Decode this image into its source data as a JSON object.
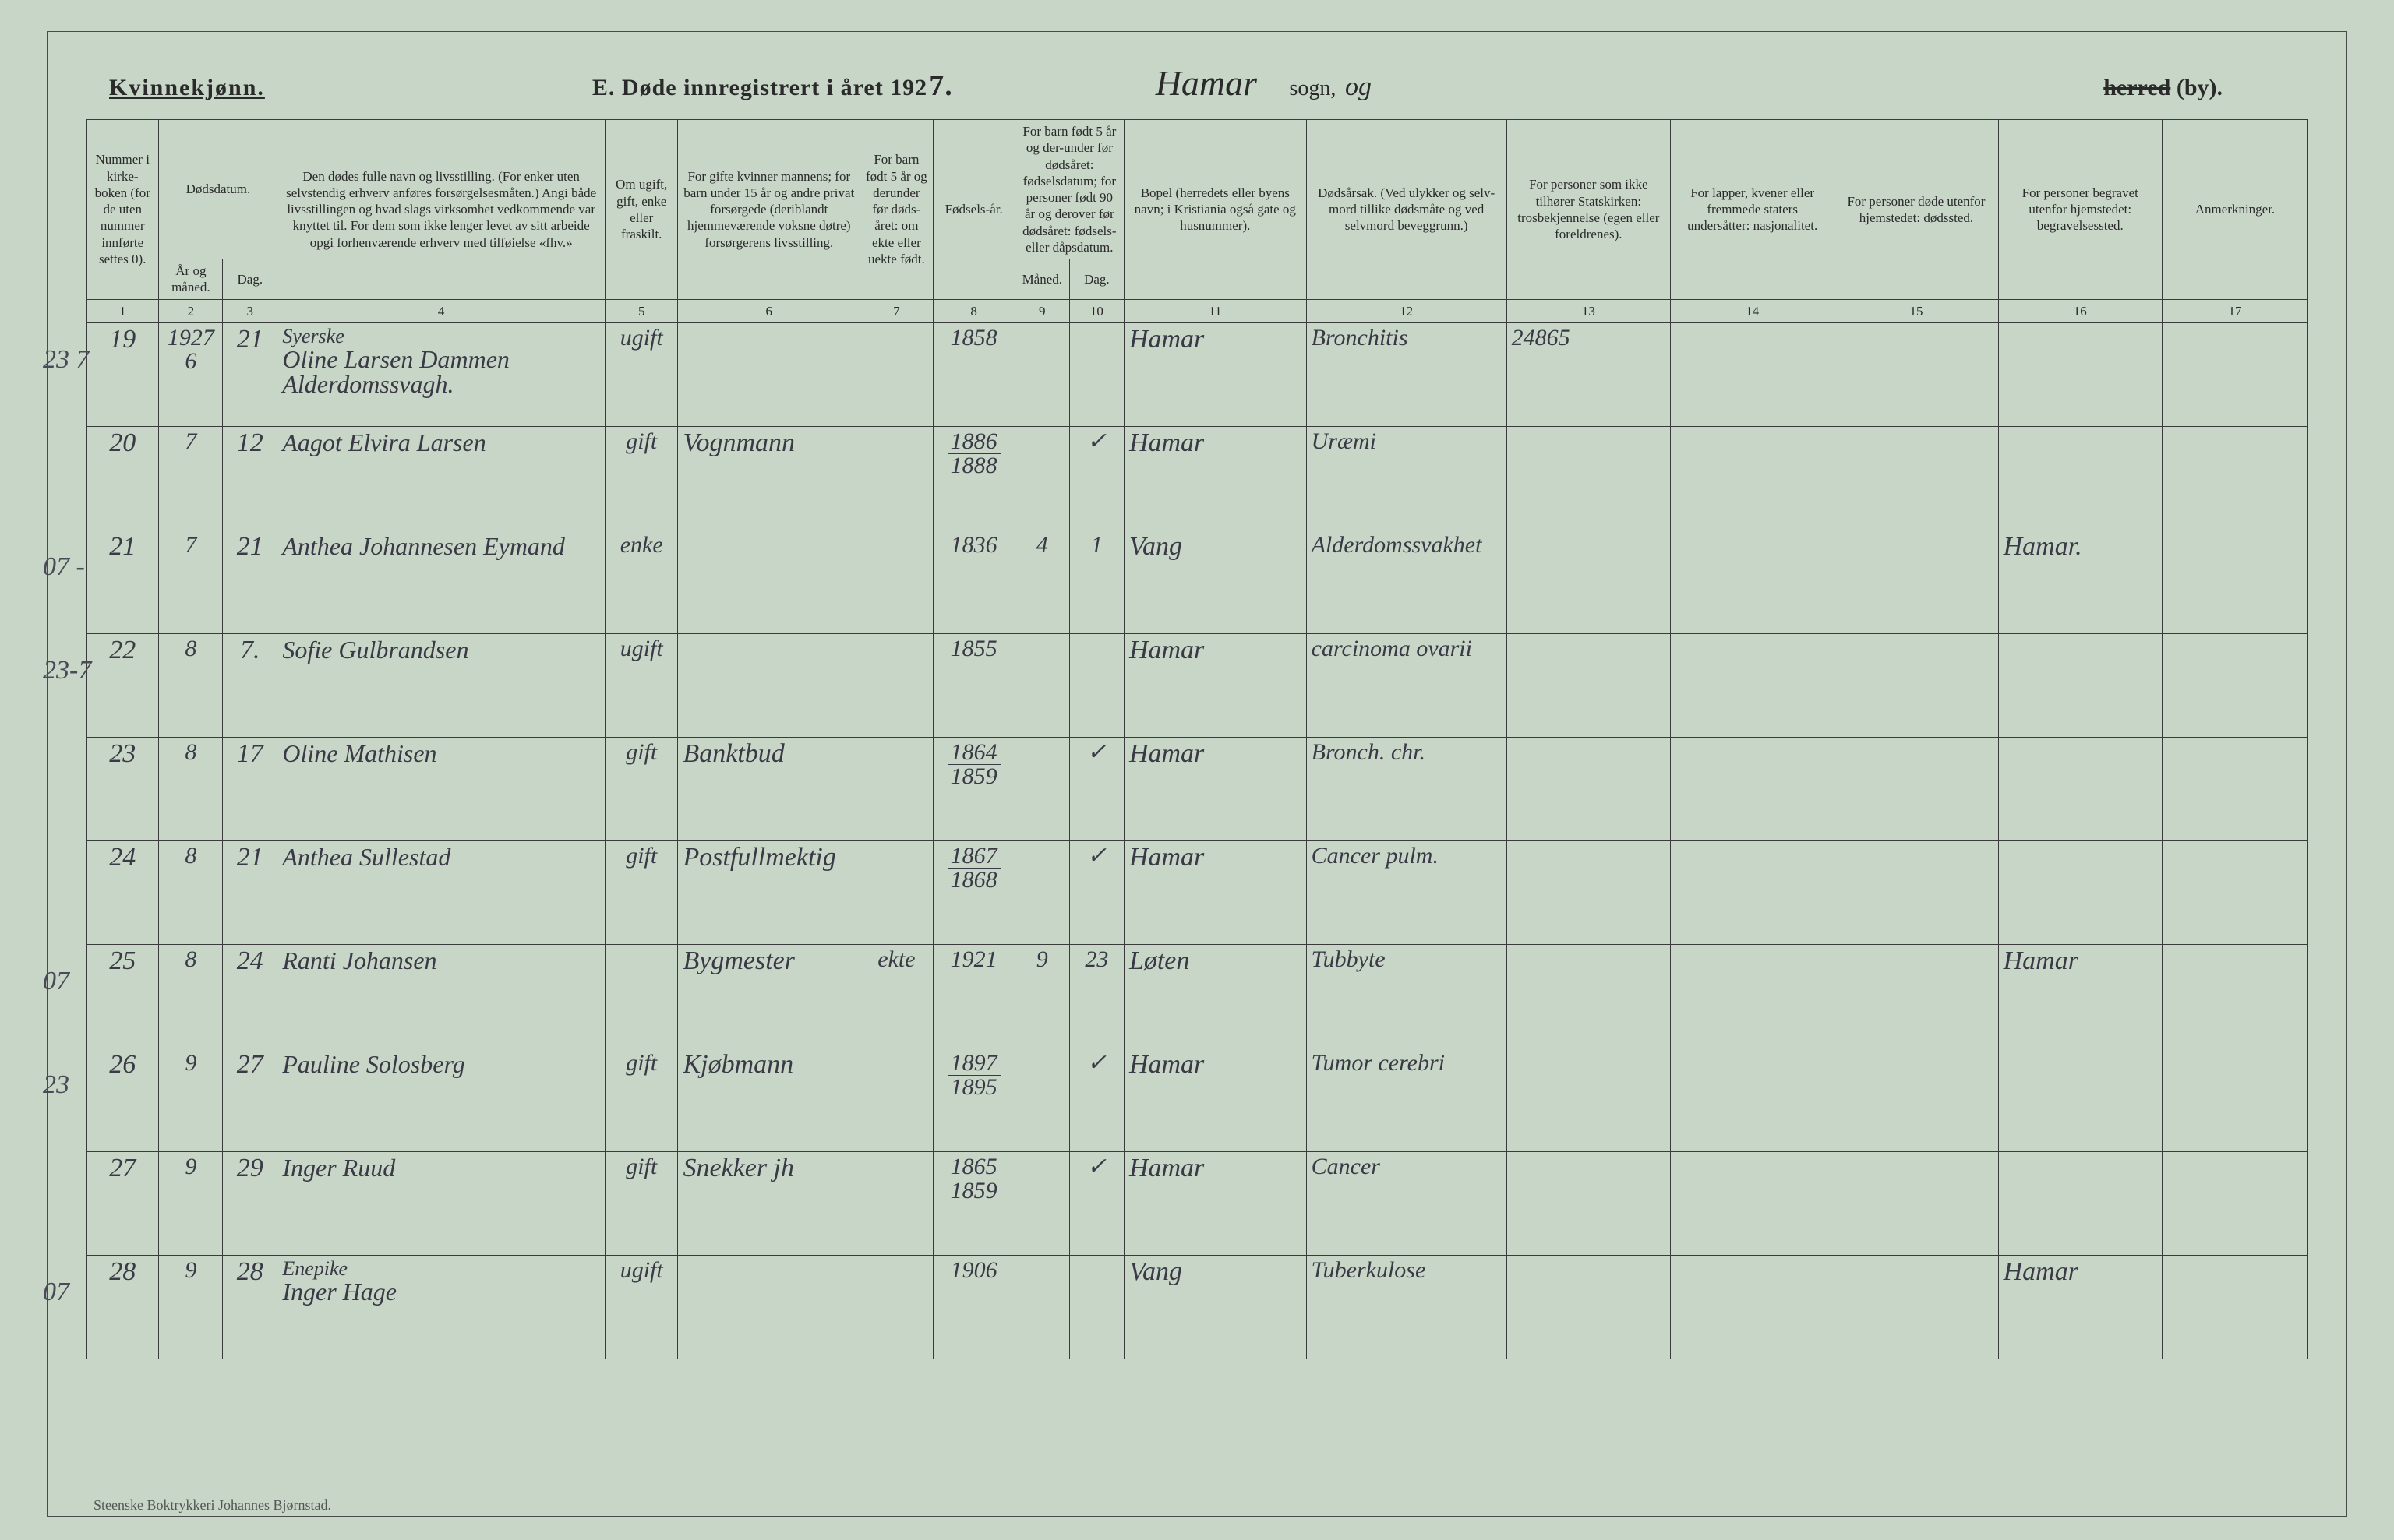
{
  "header": {
    "gender": "Kvinnekjønn.",
    "title_prefix": "E.  Døde innregistrert i året 192",
    "year_suffix": "7.",
    "sogn_name": "Hamar",
    "sogn_label": "sogn,",
    "og_hand": "og",
    "herred_strike": "herred",
    "herred_by": "(by)."
  },
  "columns": {
    "c1": "Nummer i kirke-boken (for de uten nummer innførte settes 0).",
    "c2_3_top": "Dødsdatum.",
    "c2": "År og måned.",
    "c3": "Dag.",
    "c4": "Den dødes fulle navn og livsstilling. (For enker uten selvstendig erhverv anføres forsørgelsesmåten.) Angi både livsstillingen og hvad slags virksomhet vedkommende var knyttet til. For dem som ikke lenger levet av sitt arbeide opgi forhenværende erhverv med tilføielse «fhv.»",
    "c5": "Om ugift, gift, enke eller fraskilt.",
    "c6": "For gifte kvinner mannens; for barn under 15 år og andre privat forsørgede (deriblandt hjemmeværende voksne døtre) forsørgerens livsstilling.",
    "c7": "For barn født 5 år og derunder før døds-året: om ekte eller uekte født.",
    "c8": "Fødsels-år.",
    "c9_10_top": "For barn født 5 år og der-under før dødsåret: fødselsdatum; for personer født 90 år og derover før dødsåret: fødsels- eller dåpsdatum.",
    "c9": "Måned.",
    "c10": "Dag.",
    "c11": "Bopel (herredets eller byens navn; i Kristiania også gate og husnummer).",
    "c12": "Dødsårsak. (Ved ulykker og selv-mord tillike dødsmåte og ved selvmord beveggrunn.)",
    "c13": "For personer som ikke tilhører Statskirken: trosbekjennelse (egen eller foreldrenes).",
    "c14": "For lapper, kvener eller fremmede staters undersåtter: nasjonalitet.",
    "c15": "For personer døde utenfor hjemstedet: dødssted.",
    "c16": "For personer begravet utenfor hjemstedet: begravelsessted.",
    "c17": "Anmerkninger."
  },
  "colnums": [
    "1",
    "2",
    "3",
    "4",
    "5",
    "6",
    "7",
    "8",
    "9",
    "10",
    "11",
    "12",
    "13",
    "14",
    "15",
    "16",
    "17"
  ],
  "rows": [
    {
      "margin": "23 7",
      "num": "19",
      "aar": "1927\n6",
      "dag": "21",
      "navn_l1": "Syerske",
      "navn_l2": "Oline Larsen Dammen  Alderdomssvagh.",
      "sivil": "ugift",
      "forsorger": "",
      "ekte": "",
      "faar": "1858",
      "fm": "",
      "fd": "",
      "bopel": "Hamar",
      "aarsak": "Bronchitis",
      "tros": "24865",
      "nasj": "",
      "dsted": "",
      "bsted": "",
      "anm": ""
    },
    {
      "margin": "",
      "num": "20",
      "aar": "7",
      "dag": "12",
      "navn_l1": "",
      "navn_l2": "Aagot Elvira Larsen",
      "sivil": "gift",
      "forsorger": "Vognmann",
      "ekte": "",
      "faar": "1886 / 1888",
      "fm": "",
      "fd": "✓",
      "bopel": "Hamar",
      "aarsak": "Uræmi",
      "tros": "",
      "nasj": "",
      "dsted": "",
      "bsted": "",
      "anm": ""
    },
    {
      "margin": "07 -",
      "num": "21",
      "aar": "7",
      "dag": "21",
      "navn_l1": "",
      "navn_l2": "Anthea Johannesen Eymand",
      "sivil": "enke",
      "forsorger": "",
      "ekte": "",
      "faar": "1836",
      "fm": "4",
      "fd": "1",
      "bopel": "Vang",
      "aarsak": "Alderdomssvakhet",
      "tros": "",
      "nasj": "",
      "dsted": "",
      "bsted": "Hamar.",
      "anm": ""
    },
    {
      "margin": "23-7",
      "num": "22",
      "aar": "8",
      "dag": "7.",
      "navn_l1": "",
      "navn_l2": "Sofie Gulbrandsen",
      "sivil": "ugift",
      "forsorger": "",
      "ekte": "",
      "faar": "1855",
      "fm": "",
      "fd": "",
      "bopel": "Hamar",
      "aarsak": "carcinoma ovarii",
      "tros": "",
      "nasj": "",
      "dsted": "",
      "bsted": "",
      "anm": ""
    },
    {
      "margin": "",
      "num": "23",
      "aar": "8",
      "dag": "17",
      "navn_l1": "",
      "navn_l2": "Oline Mathisen",
      "sivil": "gift",
      "forsorger": "Banktbud",
      "ekte": "",
      "faar": "1864 / 1859",
      "fm": "",
      "fd": "✓",
      "bopel": "Hamar",
      "aarsak": "Bronch. chr.",
      "tros": "",
      "nasj": "",
      "dsted": "",
      "bsted": "",
      "anm": ""
    },
    {
      "margin": "",
      "num": "24",
      "aar": "8",
      "dag": "21",
      "navn_l1": "",
      "navn_l2": "Anthea Sullestad",
      "sivil": "gift",
      "forsorger": "Postfullmektig",
      "ekte": "",
      "faar": "1867 / 1868",
      "fm": "",
      "fd": "✓",
      "bopel": "Hamar",
      "aarsak": "Cancer pulm.",
      "tros": "",
      "nasj": "",
      "dsted": "",
      "bsted": "",
      "anm": ""
    },
    {
      "margin": "07",
      "num": "25",
      "aar": "8",
      "dag": "24",
      "navn_l1": "",
      "navn_l2": "Ranti Johansen",
      "sivil": "",
      "forsorger": "Bygmester",
      "ekte": "ekte",
      "faar": "1921",
      "fm": "9",
      "fd": "23",
      "bopel": "Løten",
      "aarsak": "Tubbyte",
      "tros": "",
      "nasj": "",
      "dsted": "",
      "bsted": "Hamar",
      "anm": ""
    },
    {
      "margin": "23",
      "num": "26",
      "aar": "9",
      "dag": "27",
      "navn_l1": "",
      "navn_l2": "Pauline Solosberg",
      "sivil": "gift",
      "forsorger": "Kjøbmann",
      "ekte": "",
      "faar": "1897 / 1895",
      "fm": "",
      "fd": "✓",
      "bopel": "Hamar",
      "aarsak": "Tumor cerebri",
      "tros": "",
      "nasj": "",
      "dsted": "",
      "bsted": "",
      "anm": ""
    },
    {
      "margin": "",
      "num": "27",
      "aar": "9",
      "dag": "29",
      "navn_l1": "",
      "navn_l2": "Inger Ruud",
      "sivil": "gift",
      "forsorger": "Snekker jh",
      "ekte": "",
      "faar": "1865 / 1859",
      "fm": "",
      "fd": "✓",
      "bopel": "Hamar",
      "aarsak": "Cancer",
      "tros": "",
      "nasj": "",
      "dsted": "",
      "bsted": "",
      "anm": ""
    },
    {
      "margin": "07",
      "num": "28",
      "aar": "9",
      "dag": "28",
      "navn_l1": "Enepike",
      "navn_l2": "Inger Hage",
      "sivil": "ugift",
      "forsorger": "",
      "ekte": "",
      "faar": "1906",
      "fm": "",
      "fd": "",
      "bopel": "Vang",
      "aarsak": "Tuberkulose",
      "tros": "",
      "nasj": "",
      "dsted": "",
      "bsted": "Hamar",
      "anm": ""
    }
  ],
  "footer": "Steenske Boktrykkeri Johannes Bjørnstad.",
  "widths": {
    "c1": 80,
    "c2": 70,
    "c3": 60,
    "c4": 360,
    "c5": 80,
    "c6": 200,
    "c7": 80,
    "c8": 90,
    "c9": 60,
    "c10": 60,
    "c11": 200,
    "c12": 220,
    "c13": 180,
    "c14": 180,
    "c15": 180,
    "c16": 180,
    "c17": 160
  },
  "colors": {
    "bg": "#c8d6c8",
    "line": "#3a3a3a",
    "ink": "#3a3a46"
  }
}
